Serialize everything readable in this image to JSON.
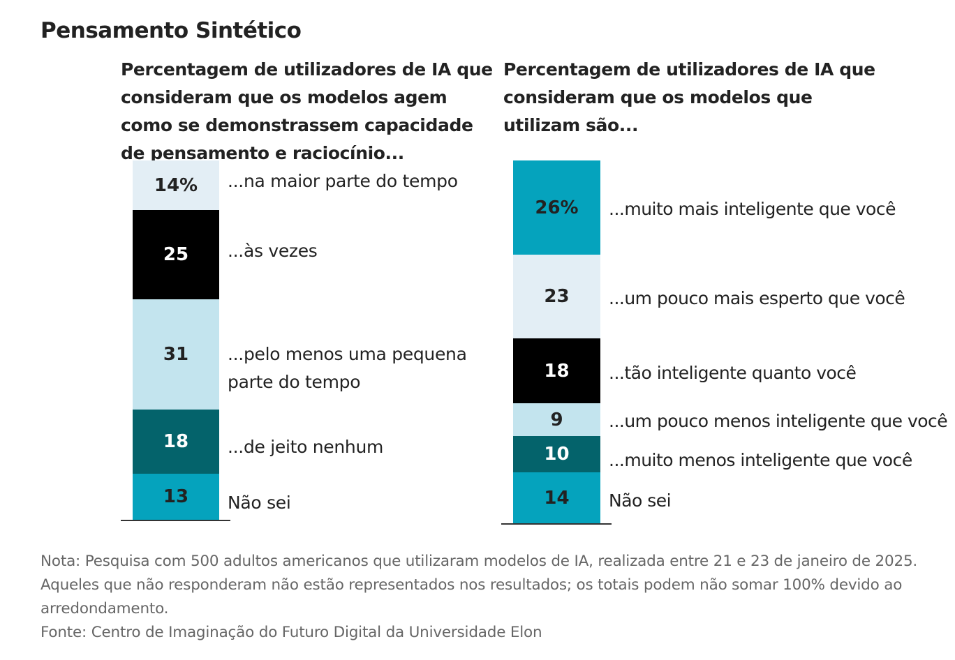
{
  "title": "Pensamento Sintético",
  "chart_data": [
    {
      "type": "bar",
      "stacked": true,
      "title": "Percentagem de utilizadores de IA que consideram que os modelos agem como se demonstrassem capacidade de pensamento e raciocínio...",
      "categories": [
        "...na maior parte do tempo",
        "...às vezes",
        "...pelo menos uma pequena parte do tempo",
        "...de jeito nenhum",
        "Não sei"
      ],
      "values": [
        14,
        25,
        31,
        18,
        13
      ],
      "value_labels": [
        "14%",
        "25",
        "31",
        "18",
        "13"
      ],
      "colors": [
        "#e3eef5",
        "#000000",
        "#c3e4ee",
        "#04636b",
        "#05a3bd"
      ],
      "text_colors": [
        "#222222",
        "#ffffff",
        "#222222",
        "#ffffff",
        "#222222"
      ]
    },
    {
      "type": "bar",
      "stacked": true,
      "title": "Percentagem de utilizadores de IA que consideram que os modelos que utilizam são...",
      "categories": [
        "...muito mais inteligente que você",
        "...um pouco mais esperto que você",
        "...tão inteligente quanto você",
        "...um pouco menos inteligente que você",
        "...muito menos inteligente que você",
        "Não sei"
      ],
      "values": [
        26,
        23,
        18,
        9,
        10,
        14
      ],
      "value_labels": [
        "26%",
        "23",
        "18",
        "9",
        "10",
        "14"
      ],
      "colors": [
        "#05a3bd",
        "#e3eef5",
        "#000000",
        "#c3e4ee",
        "#04636b",
        "#05a3bd"
      ],
      "text_colors": [
        "#222222",
        "#222222",
        "#ffffff",
        "#222222",
        "#ffffff",
        "#222222"
      ]
    }
  ],
  "note": "Nota: Pesquisa com 500 adultos americanos que utilizaram modelos de IA, realizada entre 21 e 23 de janeiro de 2025. Aqueles que não responderam não estão representados nos resultados; os totais podem não somar 100% devido ao arredondamento.",
  "source": "Fonte: Centro de Imaginação do Futuro Digital da Universidade Elon"
}
